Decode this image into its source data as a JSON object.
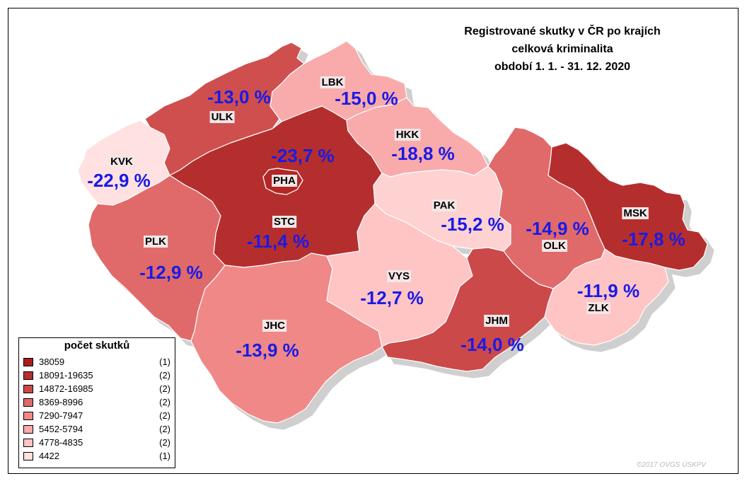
{
  "title": {
    "line1": "Registrované skutky v ČR po krajích",
    "line2": "celková kriminalita",
    "line3": "období 1. 1. - 31. 12. 2020"
  },
  "regions": [
    {
      "code": "PHA",
      "pct": "-23,7 %",
      "color": "#b22626"
    },
    {
      "code": "STC",
      "pct": "-11,4 %",
      "color": "#b52e2e"
    },
    {
      "code": "JHC",
      "pct": "-13,9 %",
      "color": "#f08888"
    },
    {
      "code": "PLK",
      "pct": "-12,9 %",
      "color": "#e06a6a"
    },
    {
      "code": "KVK",
      "pct": "-22,9 %",
      "color": "#ffe1e1"
    },
    {
      "code": "ULK",
      "pct": "-13,0 %",
      "color": "#cf5050"
    },
    {
      "code": "LBK",
      "pct": "-15,0 %",
      "color": "#f9aaaa"
    },
    {
      "code": "HKK",
      "pct": "-18,8 %",
      "color": "#f9aaaa"
    },
    {
      "code": "PAK",
      "pct": "-15,2 %",
      "color": "#ffd2d2"
    },
    {
      "code": "VYS",
      "pct": "-12,7 %",
      "color": "#ffc4c4"
    },
    {
      "code": "JHM",
      "pct": "-14,0 %",
      "color": "#cc4848"
    },
    {
      "code": "OLK",
      "pct": "-14,9 %",
      "color": "#e06a6a"
    },
    {
      "code": "MSK",
      "pct": "-17,8 %",
      "color": "#b52e2e"
    },
    {
      "code": "ZLK",
      "pct": "-11,9 %",
      "color": "#ffc4c4"
    }
  ],
  "legend": {
    "title": "počet skutků",
    "items": [
      {
        "range": "38059",
        "count": "(1)",
        "color": "#a81e1e"
      },
      {
        "range": "18091-19635",
        "count": "(2)",
        "color": "#b52e2e"
      },
      {
        "range": "14872-16985",
        "count": "(2)",
        "color": "#cc4848"
      },
      {
        "range": "8369-8996",
        "count": "(2)",
        "color": "#e06a6a"
      },
      {
        "range": "7290-7947",
        "count": "(2)",
        "color": "#f08888"
      },
      {
        "range": "5452-5794",
        "count": "(2)",
        "color": "#f9aaaa"
      },
      {
        "range": "4778-4835",
        "count": "(2)",
        "color": "#ffc4c4"
      },
      {
        "range": "4422",
        "count": "(1)",
        "color": "#ffe1e1"
      }
    ]
  },
  "credit": "©2017 OVGS ÚSKPV",
  "colors": {
    "label_blue": "#1a1ae6",
    "region_border": "#ffffff"
  }
}
